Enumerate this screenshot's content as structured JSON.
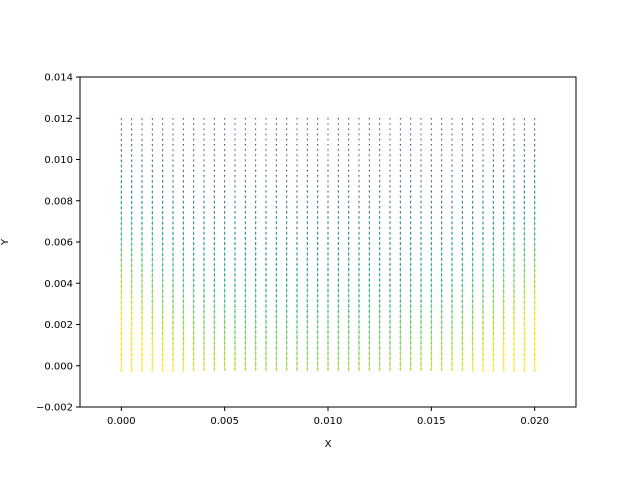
{
  "chart_data": {
    "type": "quiver",
    "title": "",
    "xlabel": "X",
    "ylabel": "Y",
    "xlim": [
      -0.002,
      0.022
    ],
    "ylim": [
      -0.002,
      0.014
    ],
    "xticks": [
      0.0,
      0.005,
      0.01,
      0.015,
      0.02
    ],
    "xtick_labels": [
      "0.000",
      "0.005",
      "0.010",
      "0.015",
      "0.020"
    ],
    "yticks": [
      -0.002,
      0.0,
      0.002,
      0.004,
      0.006,
      0.008,
      0.01,
      0.012,
      0.014
    ],
    "ytick_labels": [
      "−0.002",
      "0.000",
      "0.002",
      "0.004",
      "0.006",
      "0.008",
      "0.010",
      "0.012",
      "0.014"
    ],
    "grid": false,
    "field": {
      "x_range": [
        0.0,
        0.02
      ],
      "x_count": 41,
      "y_range": [
        0.0,
        0.012
      ],
      "y_count": 49,
      "direction": "downward",
      "colormap": "viridis",
      "magnitude_pattern": "largest near the bottom and the left/right edges, smallest at the top center",
      "max_arrow_length_y": 0.0003
    }
  }
}
